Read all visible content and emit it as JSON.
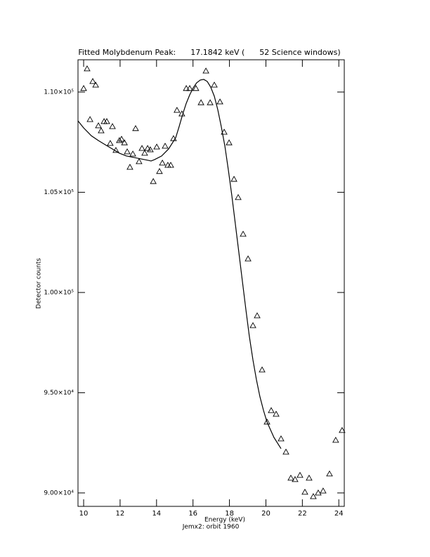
{
  "chart_data": {
    "type": "scatter",
    "title": "Fitted Molybdenum Peak:      17.1842 keV (      52 Science windows)",
    "x_label": "Energy (keV)",
    "y_label": "Detector counts",
    "footer": "Jemx2: orbit 1960",
    "xlim": [
      9.69,
      24.3
    ],
    "ylim": [
      89330,
      111610
    ],
    "xticks": [
      10,
      12,
      14,
      16,
      18,
      20,
      22,
      24
    ],
    "yticks": [
      {
        "value": 90000,
        "label": "9.00×10⁴"
      },
      {
        "value": 95000,
        "label": "9.50×10⁴"
      },
      {
        "value": 100000,
        "label": "1.00×10⁵"
      },
      {
        "value": 105000,
        "label": "1.05×10⁵"
      },
      {
        "value": 110000,
        "label": "1.10×10⁵"
      }
    ],
    "series": [
      {
        "type": "scatter",
        "marker": "triangle",
        "color": "#000000",
        "x": [
          10.0,
          10.19,
          10.35,
          10.5,
          10.66,
          10.81,
          10.96,
          11.12,
          11.27,
          11.46,
          11.58,
          11.77,
          11.96,
          12.08,
          12.24,
          12.39,
          12.54,
          12.7,
          12.85,
          13.04,
          13.2,
          13.35,
          13.51,
          13.66,
          13.82,
          14.01,
          14.16,
          14.32,
          14.47,
          14.62,
          14.78,
          14.93,
          15.12,
          15.39,
          15.63,
          15.82,
          16.16,
          16.44,
          16.71,
          16.94,
          17.17,
          17.48,
          17.71,
          17.98,
          18.25,
          18.48,
          18.75,
          19.02,
          19.29,
          19.52,
          19.79,
          20.06,
          20.29,
          20.56,
          20.83,
          21.1,
          21.37,
          21.6,
          21.87,
          22.14,
          22.37,
          22.6,
          22.87,
          23.14,
          23.49,
          23.83,
          24.18
        ],
        "values": [
          110180,
          111160,
          108630,
          110530,
          110350,
          108320,
          108070,
          108530,
          108530,
          107440,
          108280,
          107090,
          107580,
          107650,
          107470,
          107020,
          106250,
          106910,
          108180,
          106530,
          107190,
          106950,
          107190,
          107120,
          105540,
          107260,
          106040,
          106460,
          107300,
          106350,
          106350,
          107680,
          109090,
          108910,
          110180,
          110180,
          110180,
          109470,
          111050,
          109470,
          110350,
          109510,
          108000,
          107470,
          105650,
          104740,
          102910,
          101680,
          98350,
          98840,
          96140,
          93540,
          94110,
          93930,
          92700,
          92040,
          90740,
          90670,
          90880,
          90040,
          90740,
          89820,
          90000,
          90100,
          90950,
          92630,
          93120
        ]
      },
      {
        "type": "line",
        "color": "#000000",
        "x": [
          9.69,
          10.0,
          10.42,
          10.81,
          11.19,
          11.58,
          11.96,
          12.35,
          12.74,
          13.12,
          13.51,
          13.7,
          13.89,
          14.28,
          14.66,
          15.05,
          15.24,
          15.43,
          15.63,
          15.82,
          16.01,
          16.2,
          16.4,
          16.59,
          16.78,
          16.97,
          17.17,
          17.36,
          17.55,
          17.75,
          17.94,
          18.13,
          18.32,
          18.52,
          18.71,
          18.9,
          19.09,
          19.29,
          19.48,
          19.67,
          19.87,
          20.06,
          20.44,
          20.83
        ],
        "values": [
          108560,
          108210,
          107820,
          107580,
          107370,
          107160,
          106950,
          106810,
          106740,
          106670,
          106600,
          106560,
          106630,
          106810,
          107160,
          107720,
          108280,
          108880,
          109440,
          109860,
          110210,
          110460,
          110600,
          110630,
          110530,
          110250,
          109790,
          109120,
          108280,
          107300,
          106110,
          104840,
          103440,
          101970,
          100560,
          99160,
          97820,
          96630,
          95650,
          94810,
          94110,
          93540,
          92770,
          92210
        ]
      }
    ]
  }
}
